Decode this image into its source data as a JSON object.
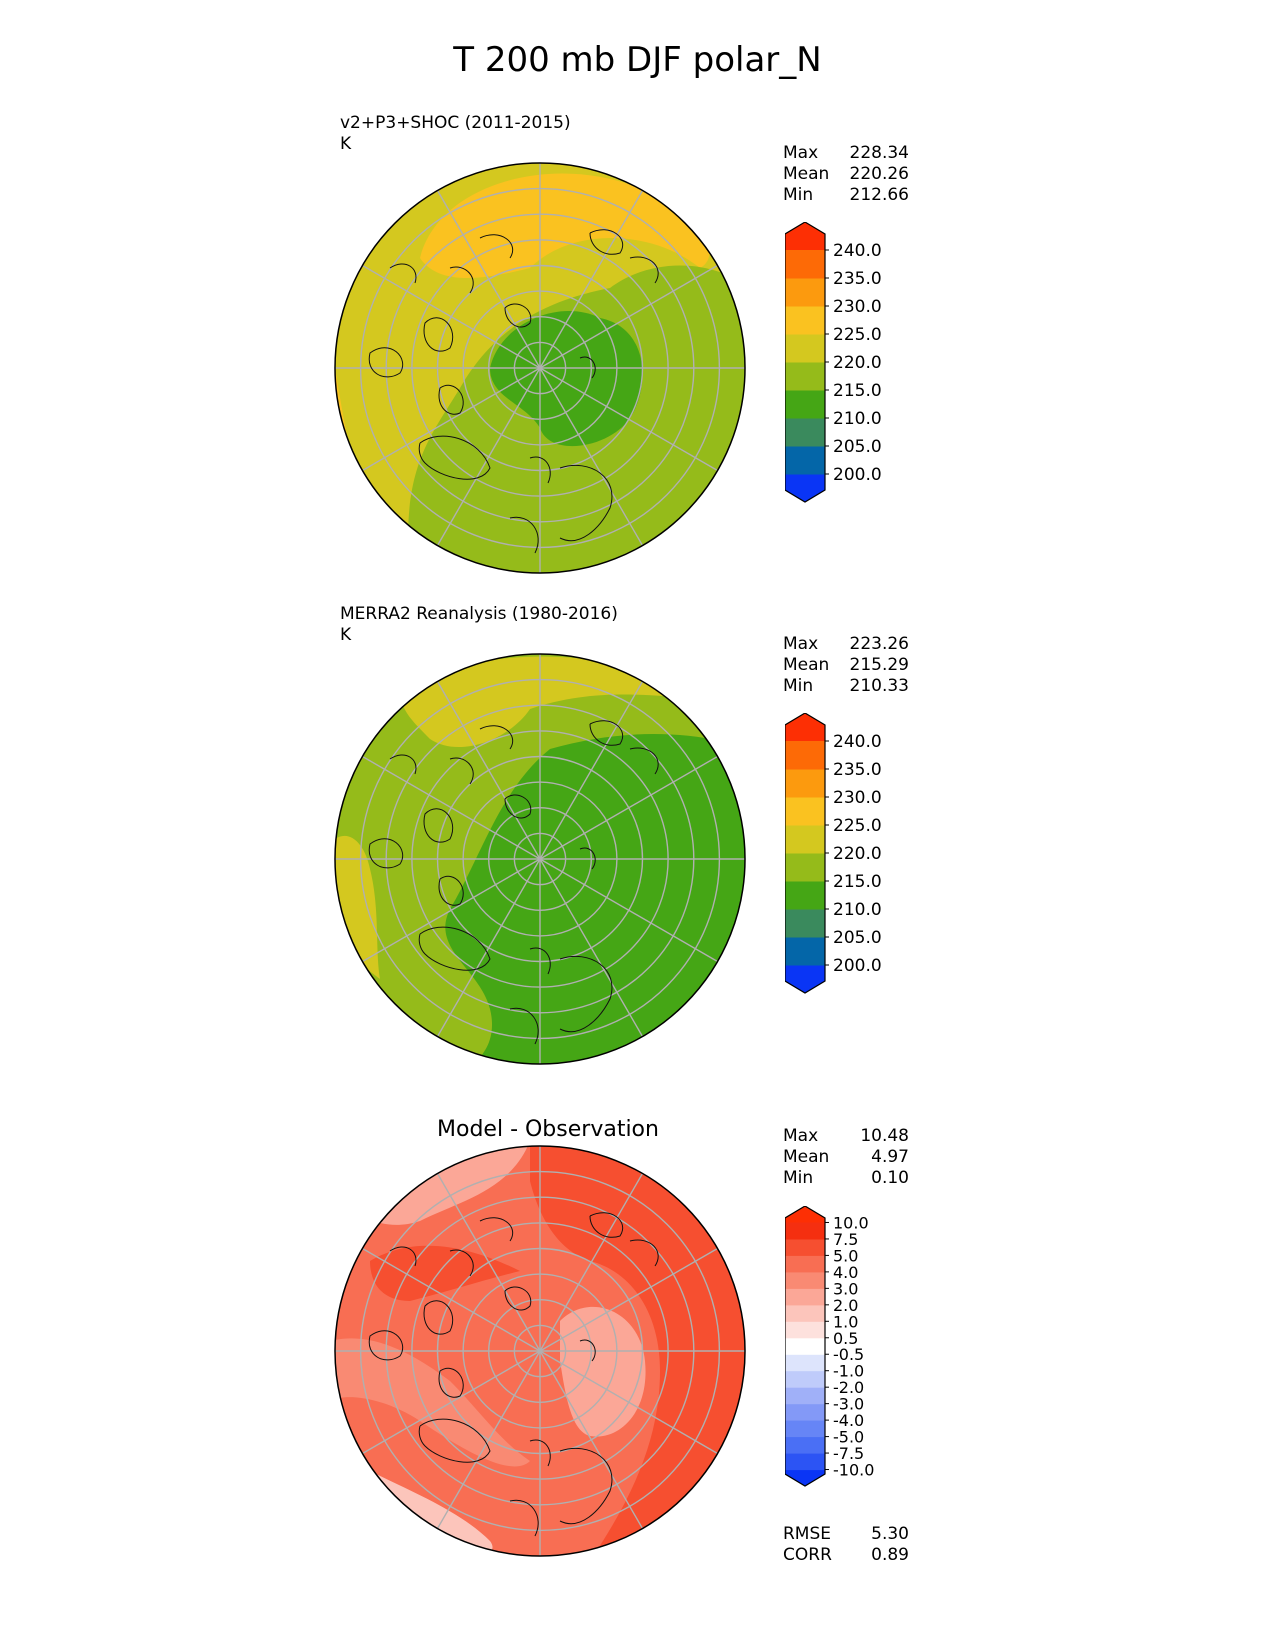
{
  "title": "T 200 mb DJF polar_N",
  "panels": [
    {
      "title": "v2+P3+SHOC (2011-2015)",
      "units": "K",
      "stats": [
        {
          "label": "Max",
          "value": "228.34"
        },
        {
          "label": "Mean",
          "value": "220.26"
        },
        {
          "label": "Min",
          "value": "212.66"
        }
      ],
      "colorbar": {
        "ticks": [
          "240.0",
          "235.0",
          "230.0",
          "225.0",
          "220.0",
          "215.0",
          "210.0",
          "205.0",
          "200.0"
        ],
        "colors": [
          "#0a35f5",
          "#0466a8",
          "#3a8a5d",
          "#45a615",
          "#95bb1a",
          "#d4c81f",
          "#fac220",
          "#fc9a0e",
          "#fd6a06",
          "#fd2f04"
        ]
      },
      "map_colors": {
        "base": "#d4c81f",
        "warm": "#fac220",
        "mid": "#95bb1a",
        "core": "#45a615"
      }
    },
    {
      "title": "MERRA2 Reanalysis (1980-2016)",
      "units": "K",
      "stats": [
        {
          "label": "Max",
          "value": "223.26"
        },
        {
          "label": "Mean",
          "value": "215.29"
        },
        {
          "label": "Min",
          "value": "210.33"
        }
      ],
      "colorbar": {
        "ticks": [
          "240.0",
          "235.0",
          "230.0",
          "225.0",
          "220.0",
          "215.0",
          "210.0",
          "205.0",
          "200.0"
        ],
        "colors": [
          "#0a35f5",
          "#0466a8",
          "#3a8a5d",
          "#45a615",
          "#95bb1a",
          "#d4c81f",
          "#fac220",
          "#fc9a0e",
          "#fd6a06",
          "#fd2f04"
        ]
      },
      "map_colors": {
        "base": "#95bb1a",
        "warm": "#d4c81f",
        "core": "#45a615"
      }
    },
    {
      "title": "Model - Observation",
      "stats": [
        {
          "label": "Max",
          "value": "10.48"
        },
        {
          "label": "Mean",
          "value": "4.97"
        },
        {
          "label": "Min",
          "value": "0.10"
        }
      ],
      "extra_stats": [
        {
          "label": "RMSE",
          "value": "5.30"
        },
        {
          "label": "CORR",
          "value": "0.89"
        }
      ],
      "colorbar": {
        "ticks": [
          "10.0",
          "7.5",
          "5.0",
          "4.0",
          "3.0",
          "2.0",
          "1.0",
          "0.5",
          "-0.5",
          "-1.0",
          "-2.0",
          "-3.0",
          "-4.0",
          "-5.0",
          "-7.5",
          "-10.0"
        ],
        "colors": [
          "#0a35f5",
          "#2c54f4",
          "#4a6ff5",
          "#6685f6",
          "#8399f7",
          "#a0b0f8",
          "#bfcbfa",
          "#dde4fc",
          "#ffffff",
          "#fde1dd",
          "#fcc5bb",
          "#fba797",
          "#f98a73",
          "#f86e53",
          "#f64f30",
          "#f52f10",
          "#fd2f04"
        ]
      },
      "map_colors": {
        "base": "#f86e53",
        "hot": "#f64f30",
        "mild": "#f98a73",
        "light": "#fba797",
        "pale": "#fcc5bb"
      }
    }
  ]
}
